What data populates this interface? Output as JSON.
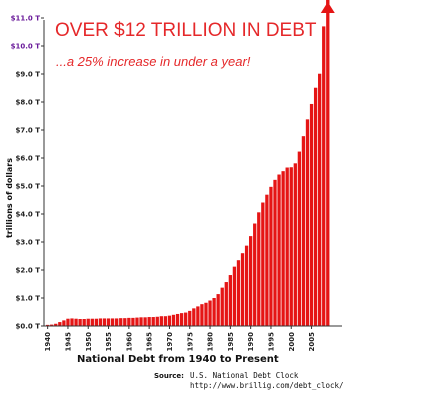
{
  "chart_data": {
    "type": "bar",
    "title": "OVER $12 TRILLION IN DEBT",
    "subtitle": "...a 25% increase in under a year!",
    "xlabel": "National Debt from 1940 to Present",
    "ylabel": "trillions of dollars",
    "ylim": [
      0,
      12
    ],
    "yticks": [
      {
        "value": 0,
        "label": "$0.0 T"
      },
      {
        "value": 1,
        "label": "$1.0 T"
      },
      {
        "value": 2,
        "label": "$2.0 T"
      },
      {
        "value": 3,
        "label": "$3.0 T"
      },
      {
        "value": 4,
        "label": "$4.0 T"
      },
      {
        "value": 5,
        "label": "$5.0 T"
      },
      {
        "value": 6,
        "label": "$6.0 T"
      },
      {
        "value": 7,
        "label": "$7.0 T"
      },
      {
        "value": 8,
        "label": "$8.0 T"
      },
      {
        "value": 9,
        "label": "$9.0 T"
      },
      {
        "value": 10,
        "label": "$10.0 T"
      },
      {
        "value": 11,
        "label": "$11.0 T"
      }
    ],
    "xticks": [
      "1940",
      "1945",
      "1950",
      "1955",
      "1960",
      "1965",
      "1970",
      "1975",
      "1980",
      "1985",
      "1990",
      "1995",
      "2000",
      "2005"
    ],
    "categories": [
      1940,
      1941,
      1942,
      1943,
      1944,
      1945,
      1946,
      1947,
      1948,
      1949,
      1950,
      1951,
      1952,
      1953,
      1954,
      1955,
      1956,
      1957,
      1958,
      1959,
      1960,
      1961,
      1962,
      1963,
      1964,
      1965,
      1966,
      1967,
      1968,
      1969,
      1970,
      1971,
      1972,
      1973,
      1974,
      1975,
      1976,
      1977,
      1978,
      1979,
      1980,
      1981,
      1982,
      1983,
      1984,
      1985,
      1986,
      1987,
      1988,
      1989,
      1990,
      1991,
      1992,
      1993,
      1994,
      1995,
      1996,
      1997,
      1998,
      1999,
      2000,
      2001,
      2002,
      2003,
      2004,
      2005,
      2006,
      2007,
      2008,
      2009
    ],
    "values": [
      0.04,
      0.05,
      0.08,
      0.14,
      0.2,
      0.26,
      0.27,
      0.26,
      0.25,
      0.25,
      0.26,
      0.26,
      0.26,
      0.27,
      0.27,
      0.27,
      0.27,
      0.27,
      0.28,
      0.28,
      0.29,
      0.29,
      0.3,
      0.31,
      0.31,
      0.32,
      0.32,
      0.33,
      0.35,
      0.35,
      0.37,
      0.4,
      0.43,
      0.46,
      0.48,
      0.54,
      0.63,
      0.7,
      0.78,
      0.83,
      0.91,
      1.0,
      1.14,
      1.37,
      1.57,
      1.82,
      2.12,
      2.35,
      2.6,
      2.87,
      3.21,
      3.66,
      4.06,
      4.41,
      4.69,
      4.97,
      5.22,
      5.41,
      5.53,
      5.66,
      5.67,
      5.81,
      6.23,
      6.78,
      7.38,
      7.93,
      8.51,
      9.01,
      10.7,
      12.0
    ],
    "bar_color": "#e51515",
    "arrow_color": "#e51515",
    "grid": false,
    "legend": "none",
    "source_label": "Source:",
    "source_lines": [
      "U.S. National Debt Clock",
      "http://www.brillig.com/debt_clock/"
    ]
  }
}
